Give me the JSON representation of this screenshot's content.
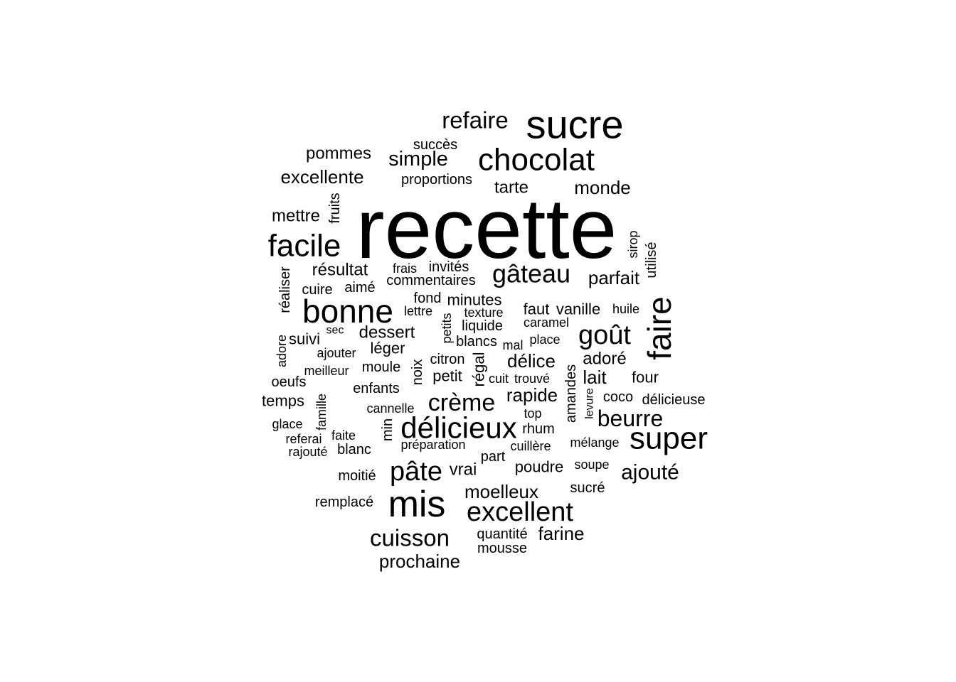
{
  "word_cloud": {
    "text_color": "#000000",
    "background_color": "#ffffff",
    "words": [
      {
        "text": "recette"
      },
      {
        "text": "sucre"
      },
      {
        "text": "refaire"
      },
      {
        "text": "chocolat"
      },
      {
        "text": "simple"
      },
      {
        "text": "succès"
      },
      {
        "text": "pommes"
      },
      {
        "text": "excellente"
      },
      {
        "text": "proportions"
      },
      {
        "text": "tarte"
      },
      {
        "text": "monde"
      },
      {
        "text": "mettre"
      },
      {
        "text": "fruits"
      },
      {
        "text": "facile"
      },
      {
        "text": "sirop"
      },
      {
        "text": "utilisé"
      },
      {
        "text": "résultat"
      },
      {
        "text": "frais"
      },
      {
        "text": "invités"
      },
      {
        "text": "gâteau"
      },
      {
        "text": "parfait"
      },
      {
        "text": "commentaires"
      },
      {
        "text": "réaliser"
      },
      {
        "text": "cuire"
      },
      {
        "text": "aimé"
      },
      {
        "text": "fond"
      },
      {
        "text": "minutes"
      },
      {
        "text": "faire"
      },
      {
        "text": "bonne"
      },
      {
        "text": "lettre"
      },
      {
        "text": "texture"
      },
      {
        "text": "faut"
      },
      {
        "text": "vanille"
      },
      {
        "text": "huile"
      },
      {
        "text": "petits"
      },
      {
        "text": "liquide"
      },
      {
        "text": "caramel"
      },
      {
        "text": "sec"
      },
      {
        "text": "dessert"
      },
      {
        "text": "suivi"
      },
      {
        "text": "goût"
      },
      {
        "text": "adore"
      },
      {
        "text": "blancs"
      },
      {
        "text": "place"
      },
      {
        "text": "ajouter"
      },
      {
        "text": "léger"
      },
      {
        "text": "mal"
      },
      {
        "text": "citron"
      },
      {
        "text": "régal"
      },
      {
        "text": "délice"
      },
      {
        "text": "adoré"
      },
      {
        "text": "meilleur"
      },
      {
        "text": "moule"
      },
      {
        "text": "noix"
      },
      {
        "text": "petit"
      },
      {
        "text": "cuit"
      },
      {
        "text": "trouvé"
      },
      {
        "text": "lait"
      },
      {
        "text": "four"
      },
      {
        "text": "oeufs"
      },
      {
        "text": "amandes"
      },
      {
        "text": "enfants"
      },
      {
        "text": "rapide"
      },
      {
        "text": "levure"
      },
      {
        "text": "coco"
      },
      {
        "text": "temps"
      },
      {
        "text": "famille"
      },
      {
        "text": "crème"
      },
      {
        "text": "délicieuse"
      },
      {
        "text": "cannelle"
      },
      {
        "text": "top"
      },
      {
        "text": "beurre"
      },
      {
        "text": "glace"
      },
      {
        "text": "min"
      },
      {
        "text": "délicieux"
      },
      {
        "text": "rhum"
      },
      {
        "text": "super"
      },
      {
        "text": "referai"
      },
      {
        "text": "faite"
      },
      {
        "text": "préparation"
      },
      {
        "text": "cuillère"
      },
      {
        "text": "mélange"
      },
      {
        "text": "rajouté"
      },
      {
        "text": "blanc"
      },
      {
        "text": "part"
      },
      {
        "text": "pâte"
      },
      {
        "text": "vrai"
      },
      {
        "text": "poudre"
      },
      {
        "text": "soupe"
      },
      {
        "text": "ajouté"
      },
      {
        "text": "moitié"
      },
      {
        "text": "moelleux"
      },
      {
        "text": "sucré"
      },
      {
        "text": "remplacé"
      },
      {
        "text": "mis"
      },
      {
        "text": "excellent"
      },
      {
        "text": "cuisson"
      },
      {
        "text": "quantité"
      },
      {
        "text": "farine"
      },
      {
        "text": "mousse"
      },
      {
        "text": "prochaine"
      }
    ]
  }
}
